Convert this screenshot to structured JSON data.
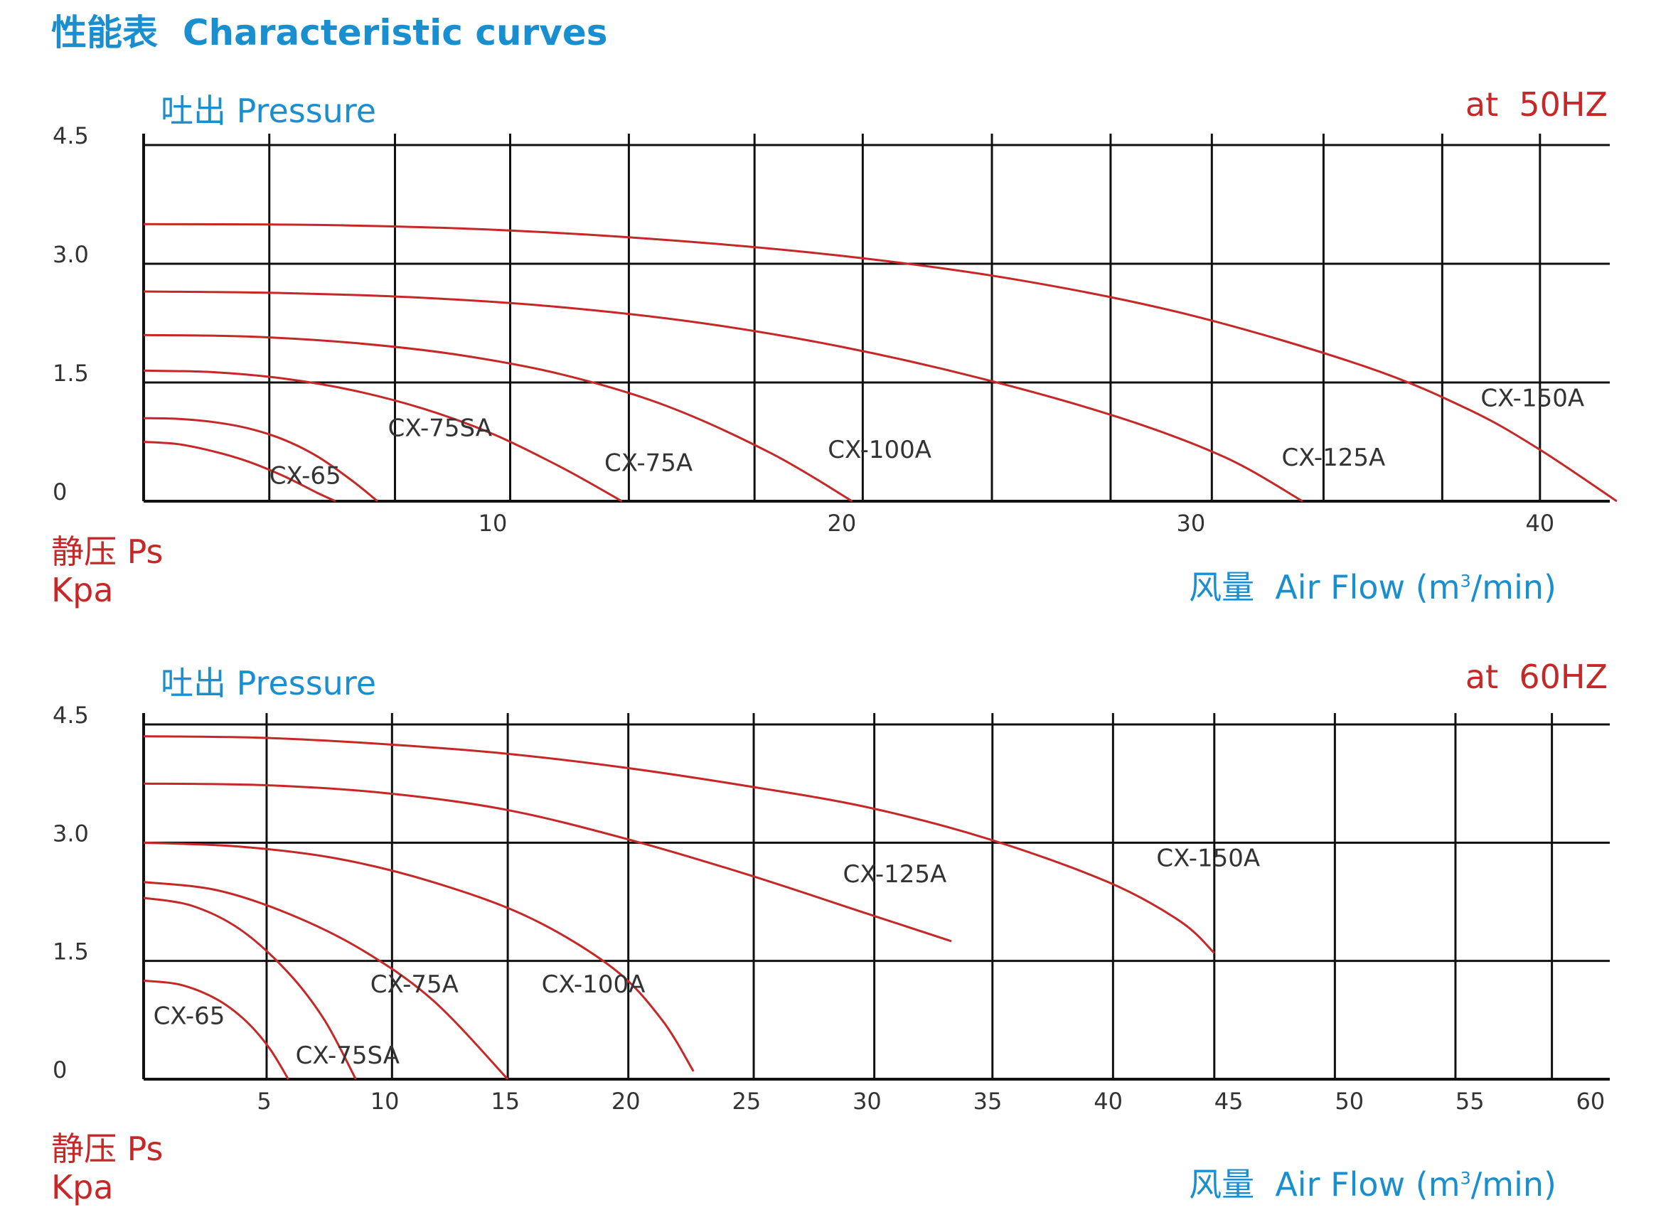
{
  "page": {
    "title": "性能表  Characteristic curves"
  },
  "colors": {
    "accent_blue": "#1a8fd0",
    "curve_red": "#c62828",
    "grid": "#111111",
    "tick_text": "#333333"
  },
  "chart_data": [
    {
      "type": "line",
      "title": "吐出 Pressure",
      "frequency_label": "at  50HZ",
      "ylabel_cn": "静压 Ps",
      "ylabel_unit": "Kpa",
      "xlabel": "风量  Air Flow (m",
      "xlabel_sup": "3",
      "xlabel_end": "/min)",
      "xlim": [
        0,
        42
      ],
      "ylim": [
        0,
        4.5
      ],
      "x_ticks": [
        10,
        20,
        30,
        40
      ],
      "y_ticks": [
        {
          "value": 0,
          "label": "0"
        },
        {
          "value": 1.5,
          "label": "1.5"
        },
        {
          "value": 3.0,
          "label": "3.0"
        },
        {
          "value": 4.5,
          "label": "4.5"
        }
      ],
      "grid_x": [
        3.6,
        7.2,
        10.5,
        13.9,
        17.5,
        20.6,
        24.3,
        27.7,
        30.6,
        33.8,
        37.2,
        40.0
      ],
      "grid_y": [
        1.5,
        3.0,
        4.5
      ],
      "series": [
        {
          "name": "CX-65",
          "x": [
            0,
            1,
            2,
            3,
            4,
            5,
            5.5
          ],
          "y": [
            0.75,
            0.72,
            0.63,
            0.5,
            0.32,
            0.1,
            0
          ]
        },
        {
          "name": "CX-75SA",
          "x": [
            0,
            1,
            2,
            3,
            4,
            5,
            6,
            6.7
          ],
          "y": [
            1.05,
            1.04,
            1.0,
            0.92,
            0.78,
            0.56,
            0.25,
            0
          ]
        },
        {
          "name": "CX-75A",
          "x": [
            0,
            2,
            4,
            6,
            8,
            10,
            12,
            13.7
          ],
          "y": [
            1.65,
            1.63,
            1.55,
            1.4,
            1.17,
            0.85,
            0.42,
            0
          ]
        },
        {
          "name": "CX-100A",
          "x": [
            0,
            3,
            6,
            9,
            12,
            15,
            18,
            20.3
          ],
          "y": [
            2.1,
            2.08,
            2.0,
            1.85,
            1.6,
            1.2,
            0.6,
            0
          ]
        },
        {
          "name": "CX-125A",
          "x": [
            0,
            4,
            8,
            12,
            16,
            20,
            24,
            28,
            31,
            33.2
          ],
          "y": [
            2.65,
            2.63,
            2.57,
            2.45,
            2.25,
            1.95,
            1.55,
            1.05,
            0.55,
            0
          ]
        },
        {
          "name": "CX-150A",
          "x": [
            0,
            5,
            10,
            15,
            20,
            25,
            30,
            35,
            38,
            40,
            42.2
          ],
          "y": [
            3.5,
            3.49,
            3.43,
            3.3,
            3.1,
            2.8,
            2.35,
            1.7,
            1.15,
            0.65,
            0
          ]
        }
      ],
      "annotations": [
        {
          "text": "CX-65",
          "x": 3.6,
          "y": 0.22
        },
        {
          "text": "CX-75SA",
          "x": 7.0,
          "y": 0.82
        },
        {
          "text": "CX-75A",
          "x": 13.2,
          "y": 0.38
        },
        {
          "text": "CX-100A",
          "x": 19.6,
          "y": 0.55
        },
        {
          "text": "CX-125A",
          "x": 32.6,
          "y": 0.45
        },
        {
          "text": "CX-150A",
          "x": 38.3,
          "y": 1.2
        }
      ]
    },
    {
      "type": "line",
      "title": "吐出 Pressure",
      "frequency_label": "at  60HZ",
      "ylabel_cn": "静压 Ps",
      "ylabel_unit": "Kpa",
      "xlabel": "风量  Air Flow (m",
      "xlabel_sup": "3",
      "xlabel_end": "/min)",
      "xlim": [
        0,
        60.8
      ],
      "ylim": [
        0,
        4.5
      ],
      "x_ticks": [
        5,
        10,
        15,
        20,
        25,
        30,
        35,
        40,
        45,
        50,
        55,
        60
      ],
      "y_ticks": [
        {
          "value": 0,
          "label": "0"
        },
        {
          "value": 1.5,
          "label": "1.5"
        },
        {
          "value": 3.0,
          "label": "3.0"
        },
        {
          "value": 4.5,
          "label": "4.5"
        }
      ],
      "grid_x": [
        5.1,
        10.3,
        15.1,
        20.1,
        25.3,
        30.3,
        35.2,
        40.2,
        44.4,
        49.4,
        54.4,
        58.4
      ],
      "grid_y": [
        1.5,
        3.0,
        4.5
      ],
      "series": [
        {
          "name": "CX-65",
          "x": [
            0,
            1.5,
            3,
            4.2,
            5.2,
            6.0
          ],
          "y": [
            1.25,
            1.2,
            1.02,
            0.75,
            0.4,
            0
          ]
        },
        {
          "name": "CX-75SA",
          "x": [
            0,
            2,
            4,
            6,
            7.5,
            8.8
          ],
          "y": [
            2.3,
            2.2,
            1.9,
            1.35,
            0.75,
            0
          ]
        },
        {
          "name": "CX-75A",
          "x": [
            0,
            3,
            6,
            9,
            12,
            15.1
          ],
          "y": [
            2.5,
            2.4,
            2.1,
            1.65,
            1.0,
            0
          ]
        },
        {
          "name": "CX-100A",
          "x": [
            0,
            4,
            8,
            12,
            16,
            19.5,
            21.5,
            22.8
          ],
          "y": [
            3.0,
            2.95,
            2.8,
            2.5,
            2.05,
            1.4,
            0.75,
            0.1
          ]
        },
        {
          "name": "CX-125A",
          "x": [
            0,
            5,
            10,
            15,
            20,
            25,
            30,
            33.5
          ],
          "y": [
            3.75,
            3.73,
            3.63,
            3.42,
            3.05,
            2.6,
            2.1,
            1.75
          ]
        },
        {
          "name": "CX-150A",
          "x": [
            0,
            5,
            10,
            15,
            20,
            25,
            30,
            35,
            40,
            43,
            44.4
          ],
          "y": [
            4.35,
            4.33,
            4.25,
            4.13,
            3.95,
            3.72,
            3.45,
            3.05,
            2.5,
            2.0,
            1.6
          ]
        }
      ],
      "annotations": [
        {
          "text": "CX-65",
          "x": 0.4,
          "y": 0.7
        },
        {
          "text": "CX-75SA",
          "x": 6.3,
          "y": 0.2
        },
        {
          "text": "CX-75A",
          "x": 9.4,
          "y": 1.1
        },
        {
          "text": "CX-100A",
          "x": 16.5,
          "y": 1.1
        },
        {
          "text": "CX-125A",
          "x": 29.0,
          "y": 2.5
        },
        {
          "text": "CX-150A",
          "x": 42.0,
          "y": 2.7
        }
      ]
    }
  ]
}
